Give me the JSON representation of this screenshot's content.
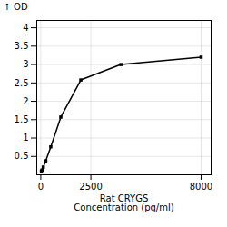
{
  "chart_data": {
    "type": "line",
    "xlabel": "Rat CRYGS\nConcentration (pg/ml)",
    "ylabel": "OD",
    "x": [
      31.25,
      62.5,
      125,
      250,
      500,
      1000,
      2000,
      4000,
      8000
    ],
    "values": [
      0.105,
      0.13,
      0.21,
      0.38,
      0.76,
      1.57,
      2.58,
      3.0,
      3.2
    ],
    "xlim": [
      -200,
      8500
    ],
    "ylim": [
      0,
      4.2
    ],
    "xticks": [
      0,
      2500,
      8000
    ],
    "yticks": [
      0.5,
      1,
      1.5,
      2,
      2.5,
      3,
      3.5,
      4
    ],
    "grid": true,
    "marker": "square"
  }
}
